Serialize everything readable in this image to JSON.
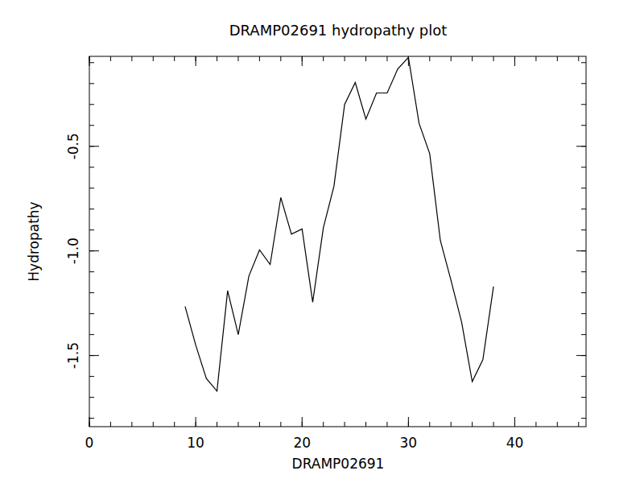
{
  "chart_data": {
    "type": "line",
    "title": "DRAMP02691 hydropathy plot",
    "x_label": "DRAMP02691",
    "y_label": "Hydropathy",
    "x": [
      9,
      10,
      11,
      12,
      13,
      14,
      15,
      16,
      17,
      18,
      19,
      20,
      21,
      22,
      23,
      24,
      25,
      26,
      27,
      28,
      29,
      30,
      31,
      32,
      33,
      34,
      35,
      36,
      37,
      38
    ],
    "values": [
      -1.265,
      -1.45,
      -1.61,
      -1.67,
      -1.19,
      -1.4,
      -1.12,
      -0.995,
      -1.065,
      -0.745,
      -0.92,
      -0.895,
      -1.245,
      -0.89,
      -0.69,
      -0.3,
      -0.195,
      -0.37,
      -0.245,
      -0.245,
      -0.13,
      -0.075,
      -0.39,
      -0.535,
      -0.95,
      -1.14,
      -1.34,
      -1.625,
      -1.52,
      -1.17
    ],
    "color": "#000000",
    "xlim": [
      0,
      46.7
    ],
    "xticks": [
      0,
      10,
      20,
      30,
      40
    ],
    "ylim": [
      -1.84,
      -0.07
    ],
    "yticks": [
      -0.5,
      {
        "value": -1,
        "label": "-1.0"
      },
      -1.5
    ],
    "grid": false
  }
}
